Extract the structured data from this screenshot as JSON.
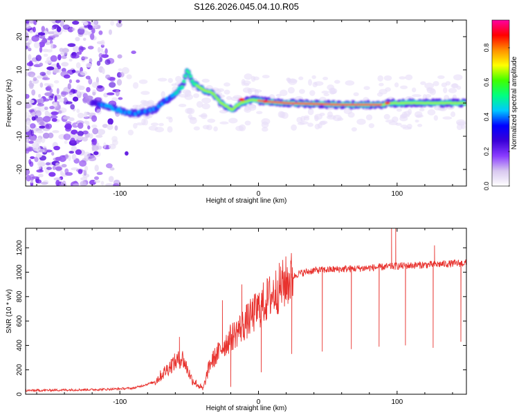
{
  "title": "S126.2026.045.04.10.R05",
  "chart_data": [
    {
      "id": "spectrogram",
      "type": "heatmap",
      "xlabel": "Height of straight line (km)",
      "ylabel": "Frequency (Hz)",
      "xlim": [
        -168,
        150
      ],
      "ylim": [
        -25,
        25
      ],
      "xticks": [
        -100,
        0,
        100
      ],
      "yticks": [
        -20,
        -10,
        0,
        10,
        20
      ],
      "colorbar": {
        "label": "Normalized spectral amplitude",
        "range": [
          0,
          0.96
        ],
        "ticks": [
          "0.0",
          "0.2",
          "0.4",
          "0.6",
          "0.8"
        ],
        "colors": [
          "#ffffff",
          "#d8c8f0",
          "#8a3cff",
          "#3a00d8",
          "#0000ff",
          "#00c8ff",
          "#00ff80",
          "#40ff00",
          "#ffff00",
          "#ff9000",
          "#ff0000",
          "#ff00a0"
        ]
      },
      "noise_region_x": [
        -168,
        -88
      ],
      "signal_track": [
        {
          "x": -120,
          "f": 0.0
        },
        {
          "x": -108,
          "f": -1.0
        },
        {
          "x": -95,
          "f": -3.0
        },
        {
          "x": -85,
          "f": -3.0
        },
        {
          "x": -75,
          "f": -2.0
        },
        {
          "x": -66,
          "f": 1.0
        },
        {
          "x": -60,
          "f": 3.0
        },
        {
          "x": -55,
          "f": 5.0
        },
        {
          "x": -51,
          "f": 10.0
        },
        {
          "x": -47,
          "f": 6.0
        },
        {
          "x": -40,
          "f": 4.0
        },
        {
          "x": -33,
          "f": 3.0
        },
        {
          "x": -27,
          "f": 0.0
        },
        {
          "x": -19,
          "f": -2.0
        },
        {
          "x": -13,
          "f": 0.0
        },
        {
          "x": -5,
          "f": 1.0
        },
        {
          "x": 5,
          "f": 0.5
        },
        {
          "x": 20,
          "f": 0.0
        },
        {
          "x": 60,
          "f": -0.5
        },
        {
          "x": 90,
          "f": -0.5
        },
        {
          "x": 95,
          "f": 0.0
        },
        {
          "x": 120,
          "f": 0.0
        },
        {
          "x": 150,
          "f": 0.0
        }
      ],
      "hotspots": [
        {
          "x": -12,
          "f": 1.0,
          "amplitude": 0.9
        },
        {
          "x": 5,
          "f": 0.5,
          "amplitude": 0.95
        },
        {
          "x": 93,
          "f": 0.0,
          "amplitude": 0.9
        }
      ]
    },
    {
      "id": "snr",
      "type": "line",
      "xlabel": "Height of straight line (km)",
      "ylabel": "SNR (10 * v/v)",
      "xlim": [
        -168,
        150
      ],
      "ylim": [
        0,
        1360
      ],
      "xticks": [
        -100,
        0,
        100
      ],
      "yticks": [
        0,
        200,
        400,
        600,
        800,
        1000,
        1200
      ],
      "line_color": "#e8322e",
      "envelope": [
        {
          "x": -168,
          "y": 30
        },
        {
          "x": -110,
          "y": 40
        },
        {
          "x": -90,
          "y": 50
        },
        {
          "x": -75,
          "y": 100
        },
        {
          "x": -62,
          "y": 250
        },
        {
          "x": -55,
          "y": 300
        },
        {
          "x": -48,
          "y": 120
        },
        {
          "x": -40,
          "y": 40
        },
        {
          "x": -35,
          "y": 250
        },
        {
          "x": -25,
          "y": 400
        },
        {
          "x": -15,
          "y": 520
        },
        {
          "x": -8,
          "y": 600
        },
        {
          "x": 0,
          "y": 700
        },
        {
          "x": 10,
          "y": 820
        },
        {
          "x": 20,
          "y": 920
        },
        {
          "x": 28,
          "y": 985
        },
        {
          "x": 40,
          "y": 1015
        },
        {
          "x": 60,
          "y": 1025
        },
        {
          "x": 80,
          "y": 1035
        },
        {
          "x": 100,
          "y": 1050
        },
        {
          "x": 120,
          "y": 1060
        },
        {
          "x": 150,
          "y": 1075
        }
      ],
      "spikes_up": [
        {
          "x": -57,
          "y": 470
        },
        {
          "x": -26,
          "y": 770
        },
        {
          "x": -12,
          "y": 900
        },
        {
          "x": 96,
          "y": 1360
        },
        {
          "x": 99,
          "y": 1360
        },
        {
          "x": 127,
          "y": 1220
        }
      ],
      "dips": [
        {
          "x": -43,
          "y": 50
        },
        {
          "x": -20,
          "y": 60
        },
        {
          "x": 2,
          "y": 180
        },
        {
          "x": 24,
          "y": 330
        },
        {
          "x": 46,
          "y": 350
        },
        {
          "x": 67,
          "y": 370
        },
        {
          "x": 87,
          "y": 390
        },
        {
          "x": 106,
          "y": 400
        },
        {
          "x": 126,
          "y": 380
        },
        {
          "x": 146,
          "y": 430
        }
      ]
    }
  ]
}
